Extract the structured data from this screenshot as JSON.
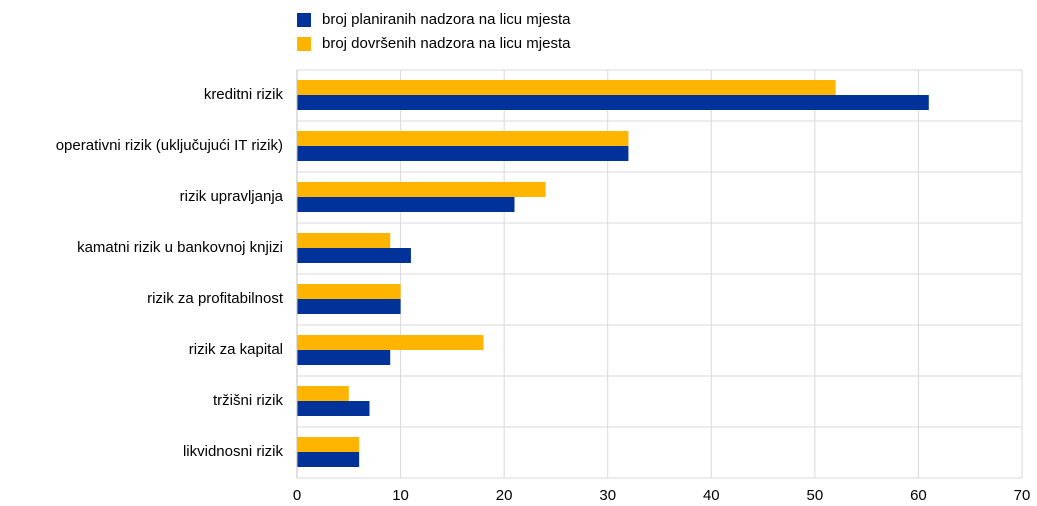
{
  "chart_data": {
    "type": "barh",
    "categories": [
      "kreditni rizik",
      "operativni rizik (uključujući IT rizik)",
      "rizik upravljanja",
      "kamatni rizik u bankovnoj knjizi",
      "rizik za profitabilnost",
      "rizik za kapital",
      "tržišni rizik",
      "likvidnosni rizik"
    ],
    "series": [
      {
        "name": "broj planiranih nadzora na licu mjesta",
        "color": "#003299",
        "values": [
          61,
          32,
          21,
          11,
          10,
          9,
          7,
          6
        ]
      },
      {
        "name": "broj dovršenih nadzora na licu mjesta",
        "color": "#ffb400",
        "values": [
          52,
          32,
          24,
          9,
          10,
          18,
          5,
          6
        ]
      }
    ],
    "xlim": [
      0,
      70
    ],
    "xticks": [
      0,
      10,
      20,
      30,
      40,
      50,
      60,
      70
    ],
    "grid": true,
    "legend": "top"
  }
}
